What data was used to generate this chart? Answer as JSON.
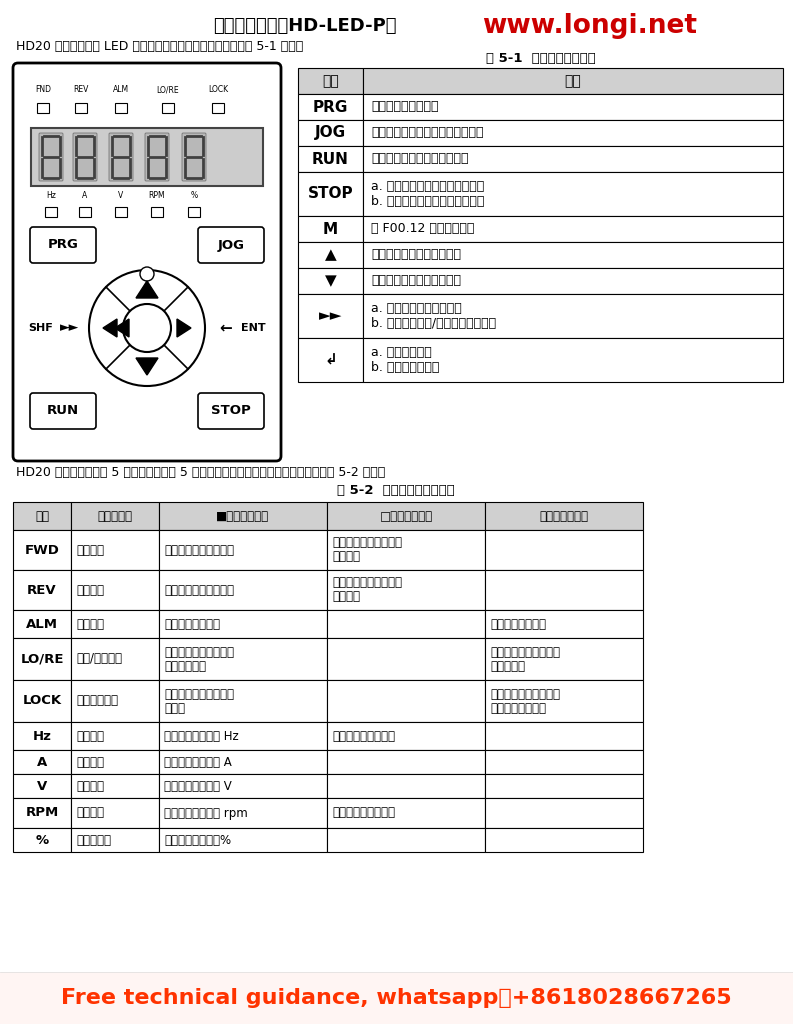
{
  "title1": "操作面板说明（HD-LED-P）",
  "title2": "www.longi.net",
  "subtitle": "HD20 标配带电位计 LED 操作面板，操作面板按键及功能如表 5-1 所示。",
  "table1_title": "表 5-1  操作面板按键说明",
  "table1_header": [
    "按键",
    "功能"
  ],
  "table1_rows": [
    [
      "PRG",
      "进入、退出编程按键"
    ],
    [
      "JOG",
      "操作面板控制时，点动起动变频器"
    ],
    [
      "RUN",
      "操作面板控制时，起动变频器"
    ],
    [
      "STOP",
      "a. 操作面板控制时，停止变频器\nb. 检出故障时，为故障复位按键"
    ],
    [
      "M",
      "由 F00.12 设定具体功能"
    ],
    [
      "▲",
      "功能参数或参数设定值递增"
    ],
    [
      "▼",
      "功能参数及参数设定值递减"
    ],
    [
      "►►",
      "a. 选择设定数据的修改位\nb. 循环切换停机/运行显示状态参数"
    ],
    [
      "↲",
      "a. 进入下级菜单\nb. 设置后确认保存"
    ]
  ],
  "mid_text": "HD20 系操作面板上有 5 个状态指示灯和 5 个单位指示灯，指示灯及显示状态含义如表 5-2 所示。",
  "table2_title": "表 5-2  操作面板指示灯说明",
  "table2_header": [
    "标识",
    "指示灯名称",
    "■（常亮）说明",
    "□（闪烁）说明",
    "凵（不亮）说明"
  ],
  "table2_rows": [
    [
      "FWD",
      "正转状态",
      "当前运转方向为正方向",
      "下次起动时的运转方向\n为正方向",
      ""
    ],
    [
      "REV",
      "反转状态",
      "当前运转方向为反方向",
      "下次起动时的运转方向\n为反方向",
      ""
    ],
    [
      "ALM",
      "警告状态",
      "当前变频器有故障",
      "",
      "当前变频器无故障"
    ],
    [
      "LO/RE",
      "远程/本地状态",
      "当前变频器处于非操作\n面板控制模式",
      "",
      "当前变频器处于操作面\n板控制模式"
    ],
    [
      "LOCK",
      "密码锁定状态",
      "当前变频器用户密码锁\n定生效",
      "",
      "当前变频器没有用户密\n码或处于解锁状态"
    ],
    [
      "Hz",
      "频率单位",
      "当前参数的单位为 Hz",
      "当前参数为输出频率",
      ""
    ],
    [
      "A",
      "电流单位",
      "当前参数的单位为 A",
      "",
      ""
    ],
    [
      "V",
      "电压单位",
      "当前参数的单位为 V",
      "",
      ""
    ],
    [
      "RPM",
      "转速单位",
      "当前参数的单位为 rpm",
      "当前参数为运行转速",
      ""
    ],
    [
      "%",
      "百分比单位",
      "当前参数的单位为%",
      "",
      ""
    ]
  ],
  "footer": "Free technical guidance, whatsapp：+8618028667265",
  "bg_color": "#ffffff",
  "header_bg": "#d0d0d0",
  "border_color": "#000000",
  "title_color": "#000000",
  "website_color": "#cc0000",
  "footer_color": "#ff3300",
  "footer_bg": "#fff0ee"
}
